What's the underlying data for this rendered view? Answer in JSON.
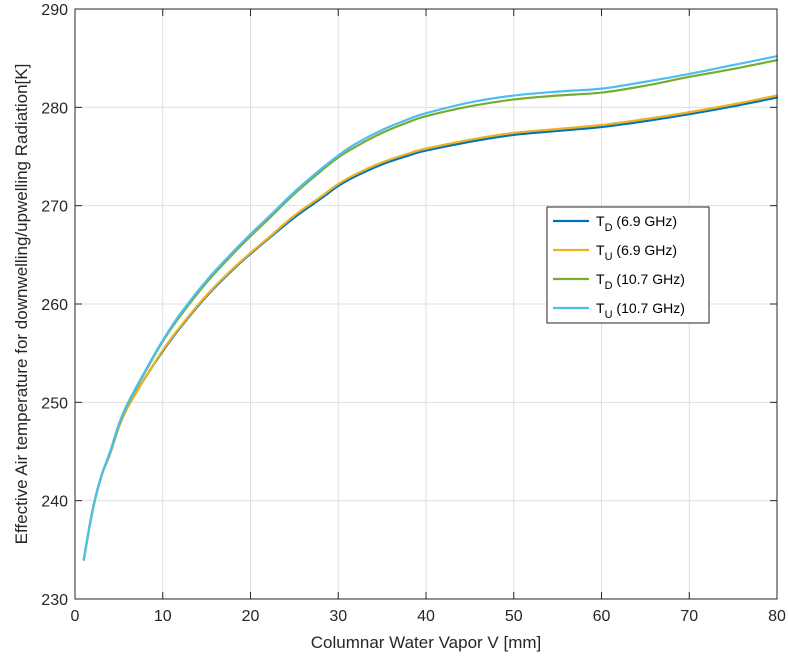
{
  "chart_data": {
    "type": "line",
    "xlabel": "Columnar Water Vapor V [mm]",
    "ylabel": "Effective Air temperature for downwelling/upwelling Radiation[K]",
    "xlim": [
      0,
      80
    ],
    "ylim": [
      230,
      290
    ],
    "xticks": [
      "0",
      "10",
      "20",
      "30",
      "40",
      "50",
      "60",
      "70",
      "80"
    ],
    "yticks": [
      "230",
      "240",
      "250",
      "260",
      "270",
      "280",
      "290"
    ],
    "grid": true,
    "legend_position": "right",
    "x": [
      1,
      2,
      3,
      4,
      5,
      6,
      8,
      10,
      12,
      15,
      18,
      20,
      22,
      25,
      28,
      30,
      32,
      35,
      38,
      40,
      45,
      50,
      55,
      60,
      65,
      70,
      75,
      80
    ],
    "series": [
      {
        "name_main": "T",
        "name_sub": "D",
        "name_suffix": " (6.9 GHz)",
        "color": "#0072BD",
        "values": [
          234.0,
          239.0,
          242.5,
          244.8,
          247.5,
          249.5,
          252.5,
          255.2,
          257.6,
          260.8,
          263.5,
          265.1,
          266.6,
          268.8,
          270.7,
          272.0,
          273.0,
          274.2,
          275.1,
          275.6,
          276.5,
          277.2,
          277.6,
          278.0,
          278.6,
          279.3,
          280.1,
          281.0
        ]
      },
      {
        "name_main": "T",
        "name_sub": "U",
        "name_suffix": " (6.9 GHz)",
        "color": "#EDB120",
        "values": [
          234.0,
          239.0,
          242.5,
          244.8,
          247.5,
          249.5,
          252.5,
          255.3,
          257.7,
          260.9,
          263.6,
          265.2,
          266.7,
          269.0,
          270.9,
          272.2,
          273.2,
          274.4,
          275.3,
          275.8,
          276.7,
          277.4,
          277.8,
          278.2,
          278.8,
          279.5,
          280.3,
          281.2
        ]
      },
      {
        "name_main": "T",
        "name_sub": "D",
        "name_suffix": " (10.7 GHz)",
        "color": "#77AC30",
        "values": [
          234.0,
          239.0,
          242.5,
          244.9,
          247.7,
          249.8,
          253.1,
          256.2,
          258.8,
          262.2,
          265.1,
          266.9,
          268.6,
          271.2,
          273.5,
          274.9,
          276.0,
          277.4,
          278.5,
          279.1,
          280.1,
          280.8,
          281.2,
          281.5,
          282.2,
          283.1,
          283.9,
          284.8
        ]
      },
      {
        "name_main": "T",
        "name_sub": "U",
        "name_suffix": " (10.7 GHz)",
        "color": "#4DBEEE",
        "values": [
          234.0,
          239.0,
          242.5,
          245.0,
          247.8,
          249.9,
          253.2,
          256.3,
          259.0,
          262.4,
          265.3,
          267.1,
          268.8,
          271.4,
          273.7,
          275.1,
          276.3,
          277.7,
          278.8,
          279.4,
          280.5,
          281.2,
          281.6,
          281.9,
          282.6,
          283.4,
          284.3,
          285.2
        ]
      }
    ]
  }
}
